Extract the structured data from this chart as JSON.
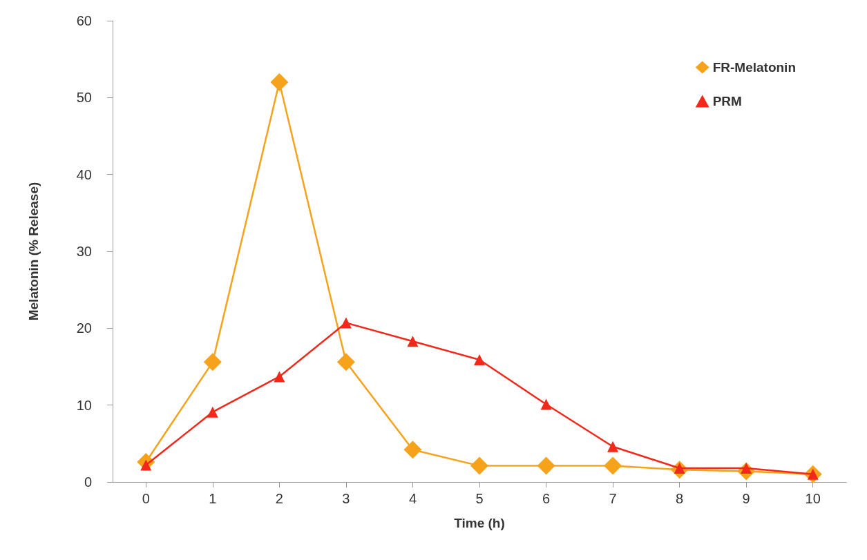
{
  "chart_data": {
    "type": "line",
    "xlabel": "Time (h)",
    "ylabel": "Melatonin (% Release)",
    "categories": [
      "0",
      "1",
      "2",
      "3",
      "4",
      "5",
      "6",
      "7",
      "8",
      "9",
      "10"
    ],
    "series": [
      {
        "name": "FR-Melatonin",
        "color": "#f7a21b",
        "marker": "diamond",
        "values": [
          2.6,
          15.6,
          52,
          15.6,
          4.2,
          2.1,
          2.1,
          2.1,
          1.6,
          1.4,
          1.0
        ]
      },
      {
        "name": "PRM",
        "color": "#f2281a",
        "marker": "triangle",
        "values": [
          2.2,
          9.1,
          13.7,
          20.7,
          18.3,
          15.9,
          10.1,
          4.6,
          1.8,
          1.8,
          1.0
        ]
      }
    ],
    "ylim": [
      0,
      60
    ],
    "yticks": [
      0,
      10,
      20,
      30,
      40,
      50,
      60
    ],
    "grid": false,
    "legend": "top right"
  }
}
